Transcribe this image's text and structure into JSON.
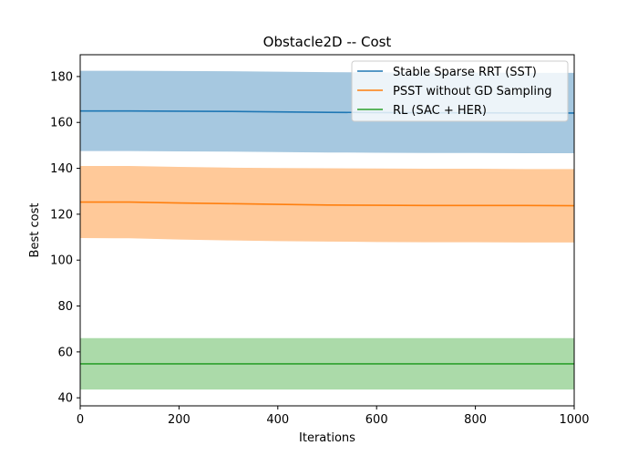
{
  "chart_data": {
    "type": "line",
    "title": "Obstacle2D -- Cost",
    "xlabel": "Iterations",
    "ylabel": "Best cost",
    "xlim": [
      0,
      1000
    ],
    "ylim": [
      36.5,
      189.5
    ],
    "xticks": [
      0,
      200,
      400,
      600,
      800,
      1000
    ],
    "yticks": [
      40,
      60,
      80,
      100,
      120,
      140,
      160,
      180
    ],
    "grid": false,
    "legend_position": "top-right",
    "x": [
      0,
      100,
      200,
      300,
      400,
      500,
      600,
      700,
      800,
      900,
      1000
    ],
    "series": [
      {
        "name": "Stable Sparse RRT (SST)",
        "color": "#1f77b4",
        "band_color": "#a6c8e0",
        "mean": [
          165.0,
          165.0,
          164.9,
          164.8,
          164.6,
          164.4,
          164.3,
          164.2,
          164.2,
          164.1,
          164.1
        ],
        "upper": [
          182.5,
          182.5,
          182.4,
          182.3,
          182.1,
          181.9,
          181.8,
          181.7,
          181.7,
          181.6,
          181.6
        ],
        "lower": [
          147.5,
          147.5,
          147.4,
          147.3,
          147.1,
          146.9,
          146.8,
          146.7,
          146.7,
          146.6,
          146.6
        ]
      },
      {
        "name": "PSST without GD Sampling",
        "color": "#ff7f0e",
        "band_color": "#ffc999",
        "mean": [
          125.3,
          125.3,
          124.9,
          124.6,
          124.3,
          124.0,
          123.9,
          123.8,
          123.8,
          123.8,
          123.7
        ],
        "upper": [
          141.0,
          141.0,
          140.6,
          140.3,
          140.1,
          140.0,
          139.9,
          139.8,
          139.8,
          139.7,
          139.7
        ],
        "lower": [
          109.6,
          109.5,
          109.0,
          108.6,
          108.3,
          108.1,
          107.9,
          107.8,
          107.8,
          107.7,
          107.7
        ]
      },
      {
        "name": "RL (SAC + HER)",
        "color": "#2ca02c",
        "band_color": "#abdaa9",
        "mean": [
          54.8,
          54.8,
          54.8,
          54.8,
          54.8,
          54.8,
          54.8,
          54.8,
          54.8,
          54.8,
          54.8
        ],
        "upper": [
          66.0,
          66.0,
          66.0,
          66.0,
          66.0,
          66.0,
          66.0,
          66.0,
          66.0,
          66.0,
          66.0
        ],
        "lower": [
          43.6,
          43.6,
          43.6,
          43.6,
          43.6,
          43.6,
          43.6,
          43.6,
          43.6,
          43.6,
          43.6
        ]
      }
    ]
  }
}
